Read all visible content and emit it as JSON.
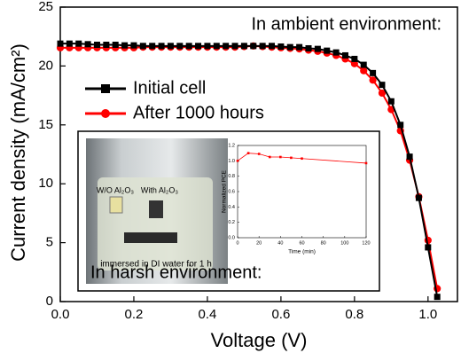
{
  "chart_data": [
    {
      "type": "line",
      "x_label": "Voltage (V)",
      "y_label": "Current density (mA/cm²)",
      "annotations": [
        "In ambient environment:",
        "In harsh environment:",
        "W/O Al₂O₃",
        "With Al₂O₃",
        "immersed in DI water for 1 h"
      ],
      "x": [
        0,
        0.025,
        0.05,
        0.075,
        0.1,
        0.125,
        0.15,
        0.175,
        0.2,
        0.225,
        0.25,
        0.275,
        0.3,
        0.325,
        0.35,
        0.375,
        0.4,
        0.425,
        0.45,
        0.475,
        0.5,
        0.525,
        0.55,
        0.575,
        0.6,
        0.625,
        0.65,
        0.675,
        0.7,
        0.725,
        0.75,
        0.775,
        0.8,
        0.825,
        0.85,
        0.875,
        0.9,
        0.925,
        0.95,
        0.975,
        1.0,
        1.025
      ],
      "series": [
        {
          "name": "Initial cell",
          "color": "#000000",
          "marker": "square",
          "values": [
            21.9,
            21.9,
            21.9,
            21.85,
            21.8,
            21.8,
            21.8,
            21.75,
            21.75,
            21.7,
            21.7,
            21.7,
            21.7,
            21.7,
            21.7,
            21.7,
            21.7,
            21.7,
            21.7,
            21.7,
            21.7,
            21.7,
            21.7,
            21.7,
            21.65,
            21.6,
            21.6,
            21.5,
            21.45,
            21.3,
            21.15,
            20.9,
            20.6,
            20.1,
            19.4,
            18.4,
            17.0,
            15.0,
            12.3,
            8.8,
            4.6,
            0.4
          ]
        },
        {
          "name": "After 1000 hours",
          "color": "#ff0000",
          "marker": "circle",
          "values": [
            21.55,
            21.55,
            21.55,
            21.55,
            21.55,
            21.55,
            21.55,
            21.55,
            21.55,
            21.6,
            21.6,
            21.6,
            21.6,
            21.6,
            21.6,
            21.6,
            21.6,
            21.6,
            21.6,
            21.6,
            21.65,
            21.7,
            21.65,
            21.6,
            21.55,
            21.5,
            21.45,
            21.35,
            21.25,
            21.1,
            20.9,
            20.6,
            20.2,
            19.6,
            18.8,
            17.7,
            16.3,
            14.5,
            12.0,
            8.9,
            5.2,
            1.1
          ]
        }
      ],
      "xlim": [
        0,
        1.08
      ],
      "ylim": [
        0,
        25
      ],
      "xticks": [
        {
          "value": 0,
          "label": "0.0"
        },
        0.2,
        0.4,
        0.6,
        0.8,
        {
          "value": 1,
          "label": "1.0"
        }
      ],
      "yticks": [
        0,
        5,
        10,
        15,
        20,
        25
      ],
      "legend": "upper left"
    },
    {
      "type": "line",
      "x_label": "Time (min)",
      "y_label": "Normalized PCE",
      "x": [
        0,
        10,
        20,
        30,
        40,
        50,
        60,
        120
      ],
      "series": [
        {
          "color": "#ff0000",
          "marker": "square",
          "values": [
            1.0,
            1.1,
            1.09,
            1.05,
            1.05,
            1.04,
            1.03,
            0.97
          ]
        }
      ],
      "xlim": [
        0,
        120
      ],
      "ylim": [
        0,
        1.2
      ],
      "xticks": [
        0,
        20,
        40,
        60,
        80,
        100,
        120
      ],
      "yticks": [
        {
          "value": 0,
          "label": "0.0"
        },
        0.2,
        0.4,
        0.6,
        0.8,
        {
          "value": 1,
          "label": "1.0"
        },
        1.2
      ]
    }
  ]
}
